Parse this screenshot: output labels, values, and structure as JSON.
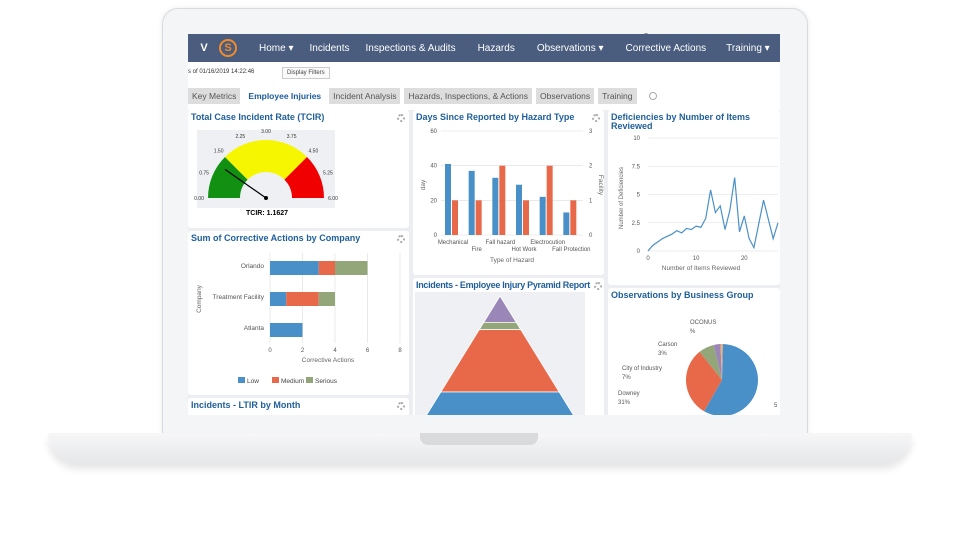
{
  "nav": {
    "items": [
      "Home ▾",
      "Incidents",
      "Inspections & Audits",
      "Hazards",
      "Observations ▾",
      "Corrective Actions",
      "Training ▾"
    ]
  },
  "subheader": {
    "as_of": "s of 01/16/2019 14:22:46",
    "display_filters": "Display Filters"
  },
  "tabs": [
    "Key Metrics",
    "Employee Injuries",
    "Incident Analysis",
    "Hazards, Inspections, & Actions",
    "Observations",
    "Training"
  ],
  "panels": {
    "tcir": {
      "title": "Total Case Incident Rate (TCIR)",
      "caption": "TCIR: 1.1627"
    },
    "corrective": {
      "title": "Sum of Corrective Actions by Company"
    },
    "ltir": {
      "title": "Incidents - LTIR by Month"
    },
    "days": {
      "title": "Days Since Reported by Hazard Type"
    },
    "pyramid": {
      "title": "Incidents - Employee Injury Pyramid Report"
    },
    "deficiencies": {
      "title": "Deficiencies by Number of Items Reviewed"
    },
    "observations": {
      "title": "Observations by Business Group"
    }
  },
  "colors": {
    "blue": "#4a90c8",
    "orange": "#e8694a",
    "green": "#93a67a",
    "purple": "#9b86b8",
    "nav": "#4a5d7e"
  },
  "chart_data": [
    {
      "type": "gauge",
      "title": "Total Case Incident Rate (TCIR)",
      "ticks": [
        "0.00",
        "0.75",
        "1.50",
        "2.25",
        "3.00",
        "3.75",
        "4.50",
        "5.25",
        "6.00"
      ],
      "range": [
        0,
        6
      ],
      "value": 1.1627,
      "bands": [
        {
          "from": 0,
          "to": 1.5,
          "color": "#129012"
        },
        {
          "from": 1.5,
          "to": 4.5,
          "color": "#f6f600"
        },
        {
          "from": 4.5,
          "to": 6,
          "color": "#f00000"
        }
      ]
    },
    {
      "type": "bar",
      "stacked": true,
      "orientation": "horizontal",
      "title": "Sum of Corrective Actions by Company",
      "categories": [
        "Orlando",
        "Treatment Facility",
        "Atlanta"
      ],
      "series": [
        {
          "name": "Low",
          "values": [
            3,
            1,
            2
          ]
        },
        {
          "name": "Medium",
          "values": [
            1,
            2,
            0
          ]
        },
        {
          "name": "Serious",
          "values": [
            2,
            1,
            0
          ]
        }
      ],
      "xlabel": "Corrective Actions",
      "ylabel": "Company",
      "xlim": [
        0,
        8
      ],
      "xticks": [
        "0",
        "2",
        "4",
        "6",
        "8"
      ],
      "legend": "bottom"
    },
    {
      "type": "bar",
      "title": "Days Since Reported by Hazard Type",
      "categories": [
        "Mechanical",
        "Fire",
        "Fall hazard",
        "Hot Work",
        "Electrocution",
        "Fall Protection"
      ],
      "series": [
        {
          "name": "day",
          "axis": "left",
          "values": [
            41,
            37,
            33,
            29,
            22,
            13
          ]
        },
        {
          "name": "Facility",
          "axis": "right",
          "values": [
            1,
            1,
            2,
            1,
            2,
            1
          ]
        }
      ],
      "xlabel": "Type of Hazard",
      "ylabel": "day",
      "y2label": "Facility",
      "ylim": [
        0,
        60
      ],
      "y2lim": [
        0,
        3
      ],
      "yticks": [
        "0",
        "20",
        "40",
        "60"
      ],
      "y2ticks": [
        "0",
        "1",
        "2",
        "3"
      ]
    },
    {
      "type": "pyramid",
      "title": "Incidents - Employee Injury Pyramid Report",
      "levels": [
        {
          "color": "#9b86b8",
          "share": 0.22
        },
        {
          "color": "#93a67a",
          "share": 0.06
        },
        {
          "color": "#e8694a",
          "share": 0.52
        },
        {
          "color": "#4a90c8",
          "share": 0.2
        }
      ]
    },
    {
      "type": "line",
      "title": "Deficiencies by Number of Items Reviewed",
      "xlabel": "Number of Items Reviewed",
      "ylabel": "Number of Deficiencies",
      "ylim": [
        0,
        10
      ],
      "xlim": [
        0,
        27
      ],
      "yticks": [
        "0",
        "2.5",
        "5",
        "7.5",
        "10"
      ],
      "xticks": [
        "0",
        "10",
        "20"
      ],
      "x": [
        0,
        1,
        2,
        3,
        4,
        5,
        6,
        7,
        8,
        9,
        10,
        11,
        12,
        13,
        14,
        15,
        16,
        17,
        18,
        19,
        20,
        21,
        22,
        23,
        24,
        25,
        26,
        27
      ],
      "y": [
        0,
        0.5,
        0.8,
        1.1,
        1.3,
        1.5,
        1.8,
        1.6,
        2.0,
        1.9,
        2.2,
        2.1,
        2.9,
        5.4,
        3.4,
        4.0,
        1.9,
        3.6,
        6.5,
        1.7,
        3.1,
        1.1,
        0.3,
        2.4,
        4.5,
        2.8,
        1.1,
        2.5
      ]
    },
    {
      "type": "pie",
      "title": "Observations by Business Group",
      "slices": [
        {
          "label": "5",
          "value": 58,
          "color": "#4a90c8"
        },
        {
          "label": "Downey",
          "pct": "31%",
          "value": 31,
          "color": "#e8694a"
        },
        {
          "label": "City of Industry",
          "pct": "7%",
          "value": 7,
          "color": "#93a67a"
        },
        {
          "label": "Carson",
          "pct": "3%",
          "value": 3,
          "color": "#9b86b8"
        },
        {
          "label": "OCONUS",
          "pct": "%",
          "value": 1,
          "color": "#f0b27a"
        }
      ]
    }
  ]
}
